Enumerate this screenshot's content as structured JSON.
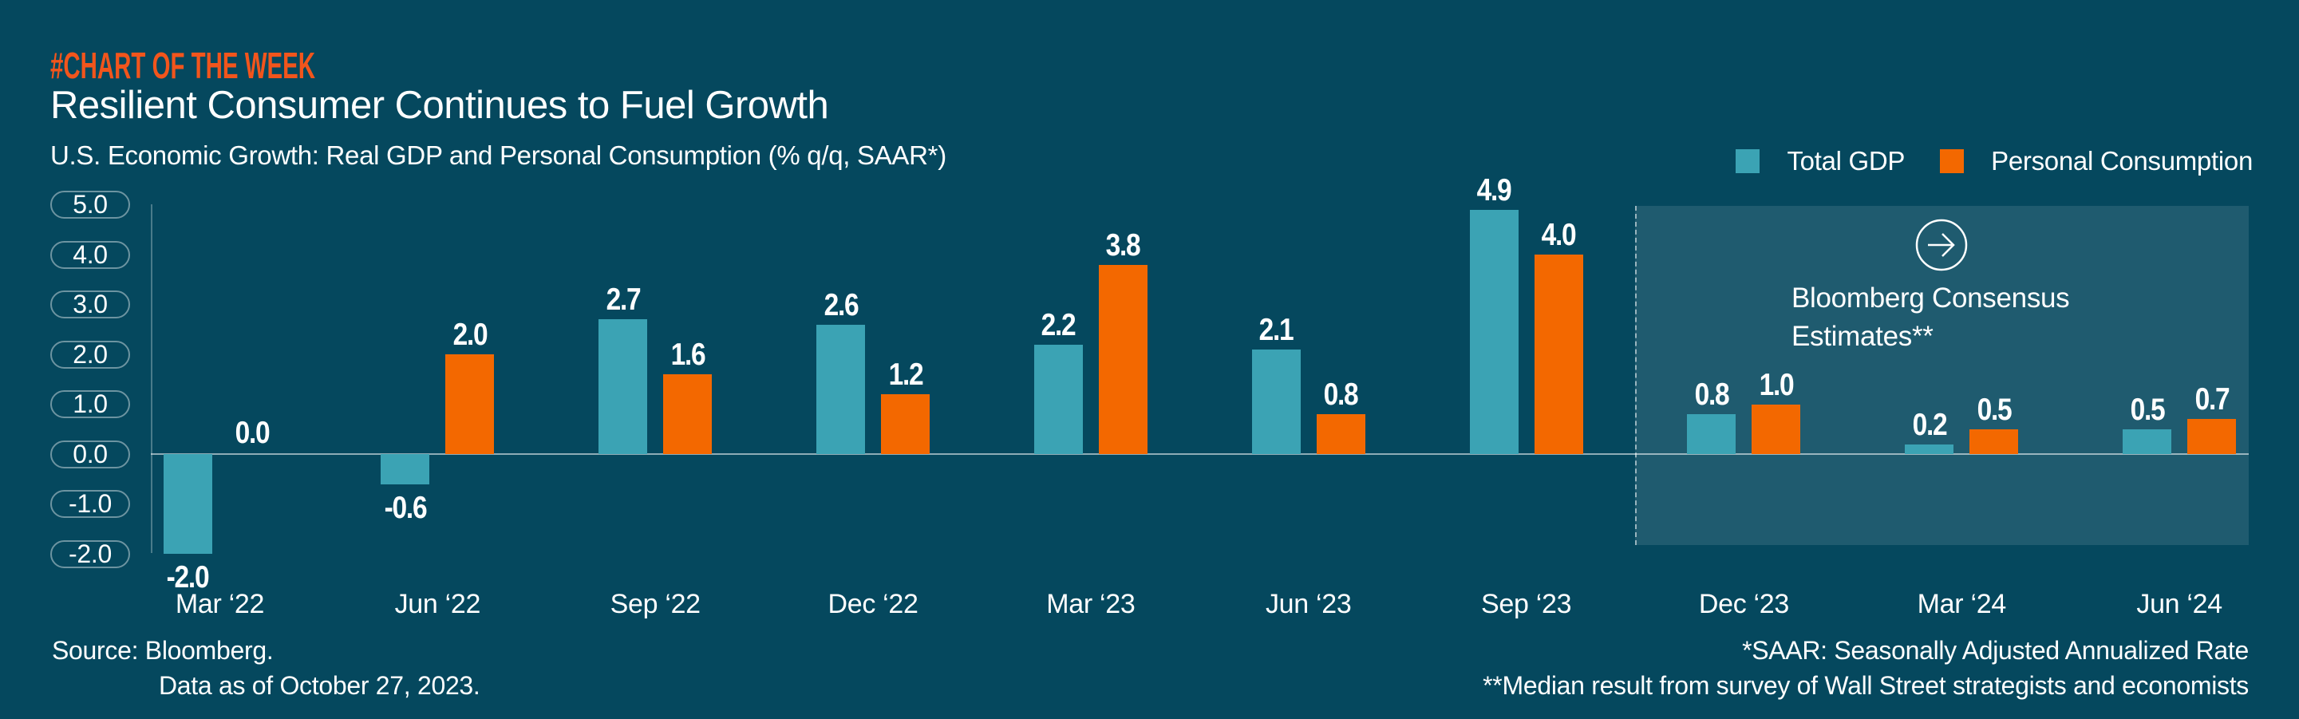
{
  "brand": {
    "logo_text": "#CHART OF THE WEEK"
  },
  "header": {
    "title": "Resilient Consumer Continues to Fuel Growth",
    "subtitle": "U.S. Economic Growth: Real GDP and Personal Consumption (% q/q, SAAR*)"
  },
  "legend": {
    "items": [
      {
        "label": "Total GDP",
        "color": "#3BA3B4"
      },
      {
        "label": "Personal Consumption",
        "color": "#F36800"
      }
    ]
  },
  "chart_data": {
    "type": "bar",
    "title": "Resilient Consumer Continues to Fuel Growth",
    "subtitle": "U.S. Economic Growth: Real GDP and Personal Consumption (% q/q, SAAR*)",
    "categories": [
      "Mar ‘22",
      "Jun ‘22",
      "Sep ‘22",
      "Dec ‘22",
      "Mar ‘23",
      "Jun ‘23",
      "Sep ‘23",
      "Dec ‘23",
      "Mar ‘24",
      "Jun ‘24"
    ],
    "series": [
      {
        "name": "Total GDP",
        "color": "#3BA3B4",
        "values": [
          -2.0,
          -0.6,
          2.7,
          2.6,
          2.2,
          2.1,
          4.9,
          0.8,
          0.2,
          0.5
        ]
      },
      {
        "name": "Personal Consumption",
        "color": "#F36800",
        "values": [
          0.0,
          2.0,
          1.6,
          1.2,
          3.8,
          0.8,
          4.0,
          1.0,
          0.5,
          0.7
        ]
      }
    ],
    "y_ticks": [
      5.0,
      4.0,
      3.0,
      2.0,
      1.0,
      0.0,
      -1.0,
      -2.0
    ],
    "ylim": [
      -2.0,
      5.0
    ],
    "xlabel": "",
    "ylabel": "",
    "grid": false,
    "legend_position": "top-right",
    "data_labels": true,
    "annotation": {
      "icon": "arrow-right-circle-icon",
      "line1": "Bloomberg Consensus",
      "line2": "Estimates**",
      "applies_to": [
        "Dec ‘23",
        "Mar ‘24",
        "Jun ‘24"
      ]
    }
  },
  "footer": {
    "source_line1": "Source: Bloomberg.",
    "source_line2": "Data as of October 27, 2023.",
    "note_line1": "*SAAR: Seasonally Adjusted Annualized Rate",
    "note_line2": "**Median result from survey of Wall Street strategists and economists"
  },
  "colors": {
    "background": "#05485E",
    "bar_gdp": "#3BA3B4",
    "bar_consumption": "#F36800",
    "logo_orange": "#F2551C",
    "text": "#FFFFFF",
    "zero_line": "rgba(255,255,255,0.55)",
    "estimate_overlay": "rgba(255,255,255,0.105)"
  }
}
